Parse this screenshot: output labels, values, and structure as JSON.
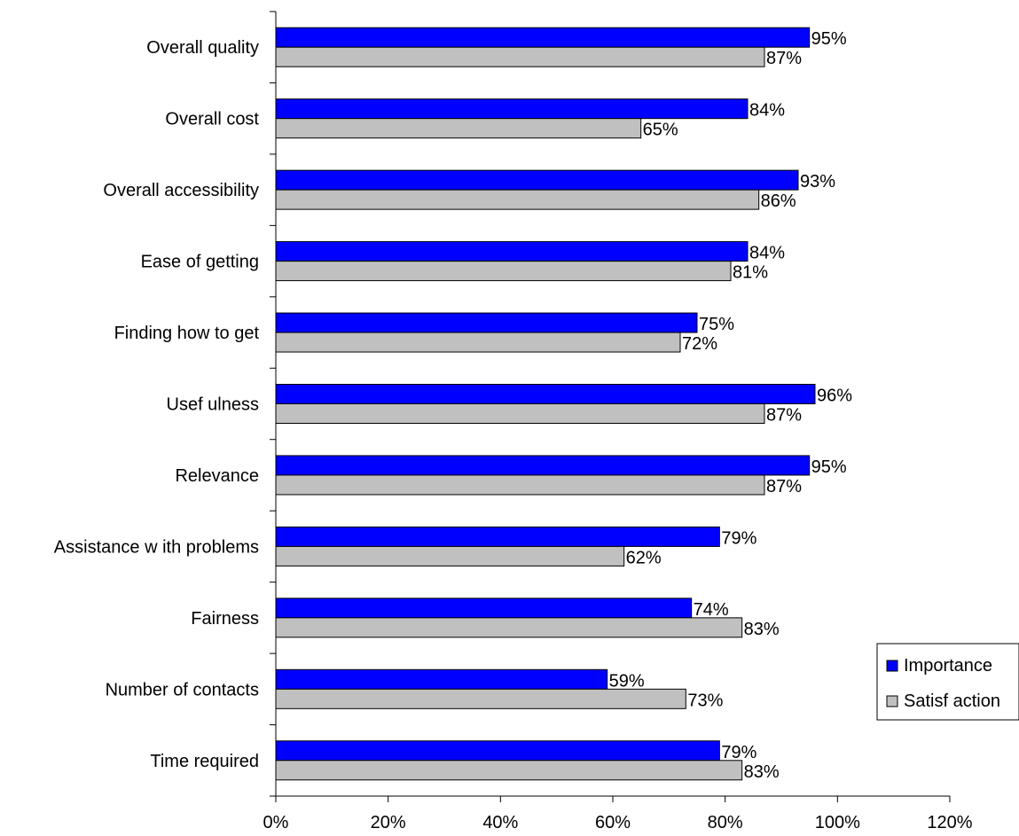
{
  "chart_data": {
    "type": "bar",
    "orientation": "horizontal",
    "categories": [
      "Overall quality",
      "Overall cost",
      "Overall accessibility",
      "Ease of  getting",
      "Finding how  to get",
      "Usef ulness",
      "Relevance",
      "Assistance w ith problems",
      "Fairness",
      "Number of  contacts",
      "Time required"
    ],
    "series": [
      {
        "name": "Importance",
        "color": "#0000ff",
        "values": [
          95,
          84,
          93,
          84,
          75,
          96,
          95,
          79,
          74,
          59,
          79
        ],
        "labels": [
          "95%",
          "84%",
          "93%",
          "84%",
          "75%",
          "96%",
          "95%",
          "79%",
          "74%",
          "59%",
          "79%"
        ]
      },
      {
        "name": "Satisf action",
        "color": "#c0c0c0",
        "values": [
          87,
          65,
          86,
          81,
          72,
          87,
          87,
          62,
          83,
          73,
          83
        ],
        "labels": [
          "87%",
          "65%",
          "86%",
          "81%",
          "72%",
          "87%",
          "87%",
          "62%",
          "83%",
          "73%",
          "83%"
        ]
      }
    ],
    "xlim": [
      0,
      120
    ],
    "xticks": [
      0,
      20,
      40,
      60,
      80,
      100,
      120
    ],
    "xtick_labels": [
      "0%",
      "20%",
      "40%",
      "60%",
      "80%",
      "100%",
      "120%"
    ],
    "grid": false,
    "legend_position": "right"
  }
}
